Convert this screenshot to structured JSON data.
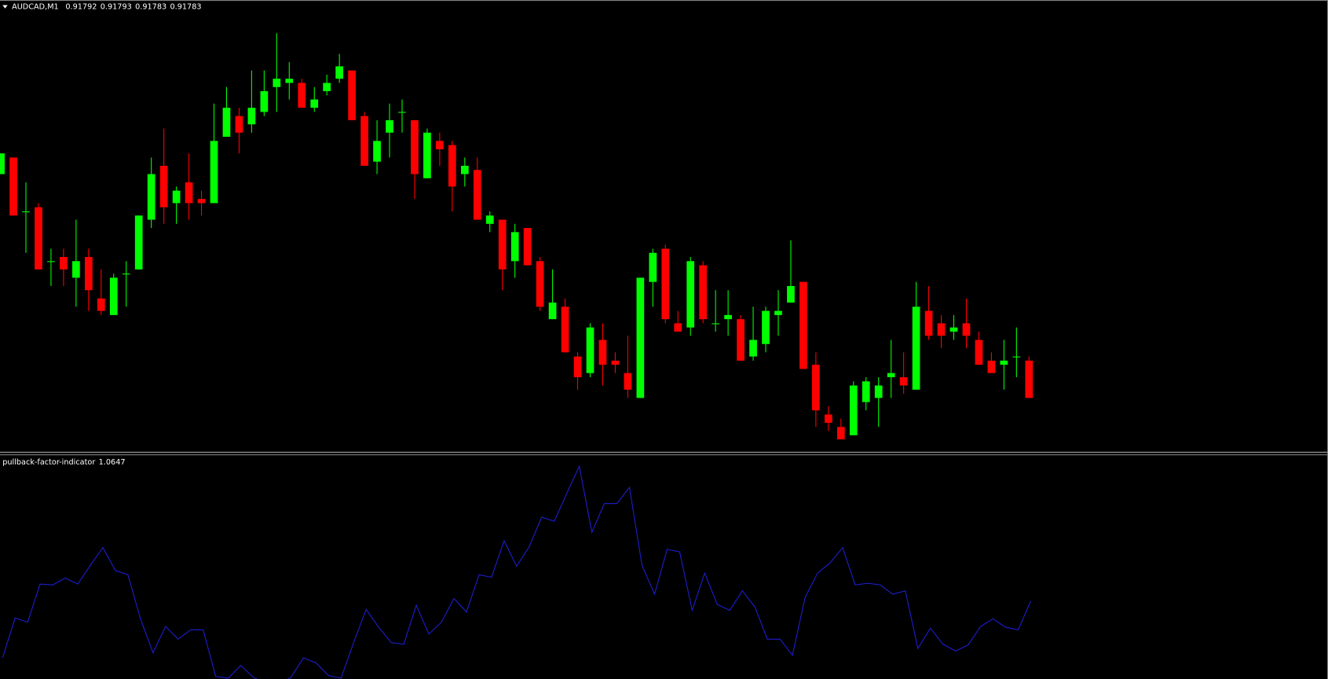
{
  "chart_data": [
    {
      "type": "candlestick",
      "title": "AUDCAD,M1",
      "open": [
        0.91837,
        0.91841,
        0.91828,
        0.91829,
        0.91816,
        0.91817,
        0.91812,
        0.91817,
        0.91807,
        0.91803,
        0.91813,
        0.91814,
        0.91826,
        0.91839,
        0.9183,
        0.91835,
        0.91831,
        0.9183,
        0.91846,
        0.91851,
        0.91849,
        0.91852,
        0.91858,
        0.91859,
        0.91859,
        0.91853,
        0.91857,
        0.9186,
        0.91862,
        0.91851,
        0.9184,
        0.91847,
        0.91852,
        0.9185,
        0.91836,
        0.91845,
        0.91844,
        0.91837,
        0.91838,
        0.91825,
        0.91826,
        0.91816,
        0.91824,
        0.91816,
        0.91802,
        0.91805,
        0.91793,
        0.91789,
        0.91797,
        0.91792,
        0.91789,
        0.91783,
        0.91811,
        0.91819,
        0.91801,
        0.918,
        0.91815,
        0.91801,
        0.91802,
        0.91802,
        0.91793,
        0.91796,
        0.91803,
        0.91806,
        0.91811,
        0.91791,
        0.91779,
        0.91776,
        0.91774,
        0.91782,
        0.91783,
        0.91788,
        0.91788,
        0.91785,
        0.91804,
        0.91801,
        0.91799,
        0.91801,
        0.91797,
        0.91792,
        0.91791,
        0.91793,
        0.91792
      ],
      "high": [
        0.91842,
        0.91841,
        0.91835,
        0.9183,
        0.91819,
        0.91819,
        0.91826,
        0.91819,
        0.91814,
        0.91813,
        0.91816,
        0.91827,
        0.91841,
        0.91848,
        0.91834,
        0.91842,
        0.91833,
        0.91854,
        0.91858,
        0.91853,
        0.91862,
        0.91862,
        0.91871,
        0.91864,
        0.9186,
        0.91858,
        0.91861,
        0.91866,
        0.91862,
        0.91852,
        0.9185,
        0.91854,
        0.91855,
        0.9185,
        0.91848,
        0.91847,
        0.91845,
        0.91841,
        0.91841,
        0.91828,
        0.91826,
        0.91825,
        0.91824,
        0.91817,
        0.91814,
        0.91807,
        0.91794,
        0.91801,
        0.91801,
        0.91794,
        0.91798,
        0.91812,
        0.91819,
        0.9182,
        0.91804,
        0.91817,
        0.91816,
        0.91809,
        0.91809,
        0.91803,
        0.91805,
        0.91805,
        0.91809,
        0.91821,
        0.91811,
        0.91794,
        0.91781,
        0.91778,
        0.91787,
        0.91788,
        0.91788,
        0.91797,
        0.91794,
        0.91811,
        0.9181,
        0.91803,
        0.91803,
        0.91807,
        0.91799,
        0.91794,
        0.91797,
        0.918,
        0.91793
      ],
      "low": [
        0.91837,
        0.91827,
        0.91818,
        0.91814,
        0.9181,
        0.9181,
        0.91805,
        0.91804,
        0.91803,
        0.91803,
        0.91805,
        0.91814,
        0.91824,
        0.91825,
        0.91825,
        0.91826,
        0.91827,
        0.9183,
        0.91846,
        0.91842,
        0.91847,
        0.91851,
        0.91852,
        0.91855,
        0.91853,
        0.91852,
        0.91856,
        0.91859,
        0.9185,
        0.91839,
        0.91837,
        0.91841,
        0.91847,
        0.91831,
        0.91836,
        0.91839,
        0.91828,
        0.91834,
        0.91826,
        0.91823,
        0.91809,
        0.91812,
        0.91815,
        0.91804,
        0.91802,
        0.91794,
        0.91785,
        0.91788,
        0.91786,
        0.91789,
        0.91783,
        0.91783,
        0.91805,
        0.91801,
        0.91799,
        0.91798,
        0.91801,
        0.91799,
        0.91798,
        0.91792,
        0.91792,
        0.91794,
        0.91798,
        0.91806,
        0.9179,
        0.91776,
        0.91775,
        0.91773,
        0.91774,
        0.9178,
        0.91776,
        0.91783,
        0.91784,
        0.91785,
        0.91797,
        0.91795,
        0.91797,
        0.91795,
        0.91791,
        0.91789,
        0.91785,
        0.91788,
        0.91783
      ],
      "close": [
        0.91842,
        0.91827,
        0.91828,
        0.91814,
        0.91816,
        0.91814,
        0.91816,
        0.91809,
        0.91804,
        0.91812,
        0.91813,
        0.91827,
        0.91837,
        0.91829,
        0.91833,
        0.9183,
        0.9183,
        0.91845,
        0.91853,
        0.91847,
        0.91853,
        0.91857,
        0.9186,
        0.9186,
        0.91853,
        0.91855,
        0.91859,
        0.91863,
        0.9185,
        0.91839,
        0.91845,
        0.9185,
        0.91852,
        0.91837,
        0.91847,
        0.91843,
        0.91834,
        0.91839,
        0.91826,
        0.91827,
        0.91814,
        0.91823,
        0.91815,
        0.91805,
        0.91806,
        0.91794,
        0.91788,
        0.918,
        0.91791,
        0.91791,
        0.91785,
        0.91812,
        0.91818,
        0.91802,
        0.91799,
        0.91816,
        0.91802,
        0.91801,
        0.91803,
        0.91792,
        0.91797,
        0.91804,
        0.91804,
        0.9181,
        0.9179,
        0.9178,
        0.91777,
        0.91773,
        0.91786,
        0.91787,
        0.91786,
        0.91789,
        0.91786,
        0.91805,
        0.91798,
        0.91798,
        0.918,
        0.91798,
        0.91791,
        0.91789,
        0.91792,
        0.91793,
        0.91783
      ],
      "ylim": [
        0.9177,
        0.91879
      ],
      "bull_color": "#00ff00",
      "bear_color": "#ff0000"
    },
    {
      "type": "line",
      "title": "pullback-factor-indicator",
      "color": "#1e1ed2",
      "values": [
        0.9307,
        1.0247,
        1.0147,
        1.1047,
        1.1027,
        1.1187,
        1.1047,
        1.1487,
        1.1907,
        1.1367,
        1.1267,
        1.0227,
        0.9427,
        1.0047,
        0.9747,
        0.9967,
        0.9967,
        0.8867,
        0.8827,
        0.9127,
        0.8847,
        0.8707,
        0.8667,
        0.8847,
        0.9307,
        0.9187,
        0.8887,
        0.8827,
        0.9667,
        1.0447,
        1.0027,
        0.9667,
        0.9627,
        1.0547,
        0.9867,
        1.0147,
        1.0707,
        1.0387,
        1.1267,
        1.1207,
        1.2067,
        1.1467,
        1.1927,
        1.2627,
        1.2527,
        1.3187,
        1.3827,
        1.2267,
        1.2947,
        1.2947,
        1.3327,
        1.1487,
        1.0807,
        1.1867,
        1.1807,
        1.0427,
        1.1307,
        1.0567,
        1.0427,
        1.0887,
        1.0507,
        0.9747,
        0.9747,
        0.9367,
        1.0727,
        1.1307,
        1.1547,
        1.1907,
        1.1027,
        1.1067,
        1.1027,
        1.0807,
        1.0887,
        0.9527,
        1.0007,
        0.9627,
        0.9467,
        0.9607,
        1.0047,
        1.0227,
        1.0027,
        0.9967,
        1.0647
      ],
      "ylim": [
        0.8807,
        1.4087
      ]
    }
  ]
}
